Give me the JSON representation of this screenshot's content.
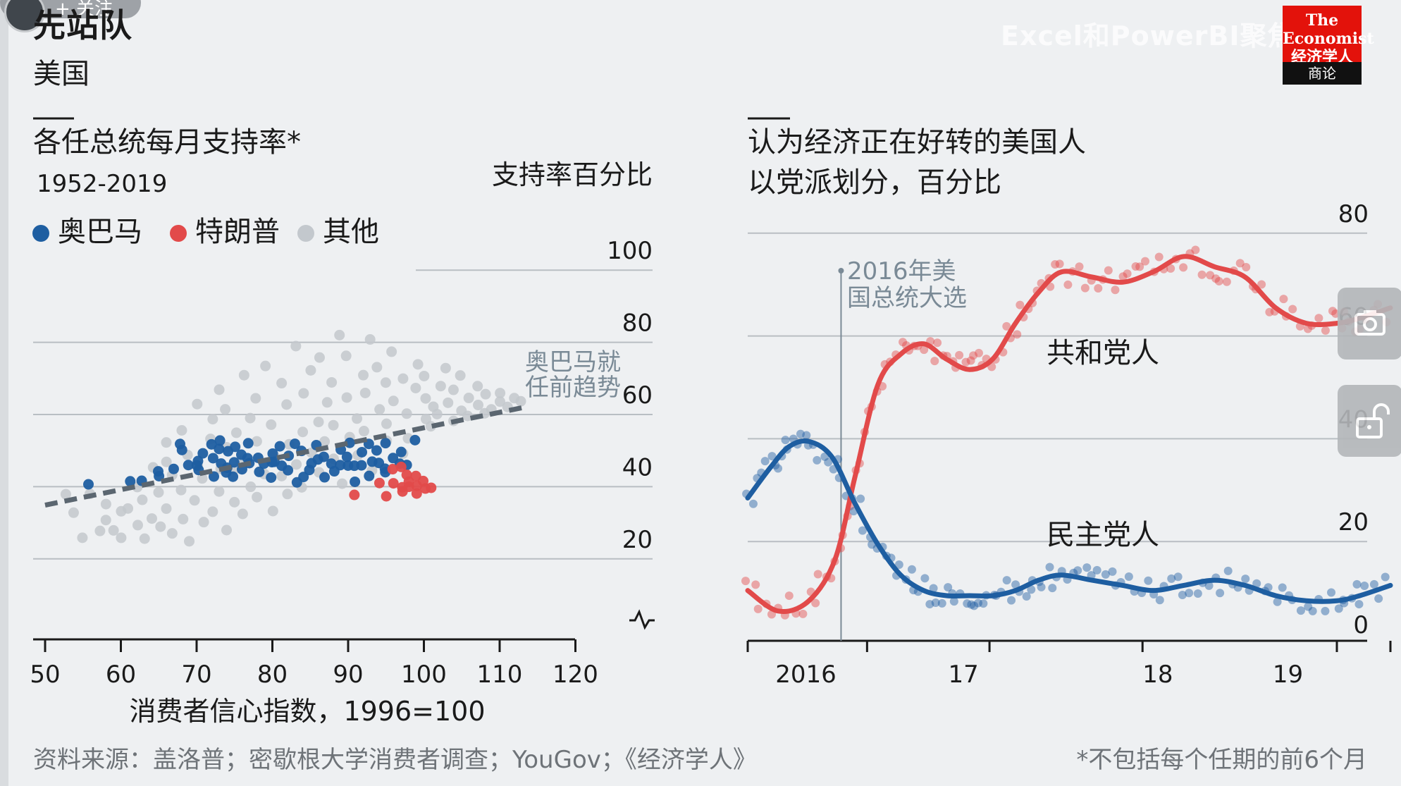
{
  "page": {
    "title": "先站队",
    "subtitle": "美国",
    "watermark": "Excel和PowerBI聚焦",
    "overlay_follow": "+ 关注",
    "logo_top": "The Economist 经济学人",
    "logo_bottom": "商论",
    "source": "资料来源：盖洛普；密歇根大学消费者调查；YouGov；《经济学人》",
    "footnote": "*不包括每个任期的前6个月"
  },
  "icons": {
    "camera": "camera-icon",
    "lock": "unlock-icon"
  },
  "colors": {
    "obama": "#1e5ea1",
    "trump": "#e24a4a",
    "other": "#c3c8cd",
    "trend": "#5b6670"
  },
  "chart_data": [
    {
      "type": "scatter",
      "title": "各任总统每月支持率*",
      "subtitle": "1952-2019",
      "xlabel": "消费者信心指数，1996=100",
      "ylabel": "支持率百分比",
      "xlim": [
        47,
        122
      ],
      "ylim": [
        10,
        100
      ],
      "x_ticks": [
        50,
        60,
        70,
        80,
        90,
        100,
        110,
        120
      ],
      "y_ticks": [
        20,
        40,
        60,
        80,
        100
      ],
      "grid": "horizontal",
      "legend_position": "top-left",
      "annotation": "奥巴马就任前趋势",
      "trendline": {
        "name": "奥巴马就任前趋势",
        "x": [
          50,
          113
        ],
        "y": [
          34.5,
          61.5
        ]
      },
      "series": [
        {
          "name": "奥巴马",
          "color": "#1e5ea1",
          "x": [
            56,
            61,
            63,
            65,
            65,
            67,
            68,
            68,
            69,
            70,
            70,
            70,
            71,
            72,
            72,
            72,
            73,
            73,
            73,
            74,
            74,
            74,
            75,
            75,
            75,
            76,
            76,
            77,
            77,
            77,
            78,
            78,
            79,
            80,
            80,
            80,
            80,
            81,
            81,
            82,
            82,
            83,
            83,
            84,
            84,
            85,
            85,
            86,
            86,
            87,
            87,
            88,
            88,
            89,
            89,
            90,
            90,
            90,
            91,
            91,
            92,
            92,
            93,
            93,
            93,
            94,
            94,
            95,
            95,
            95,
            96,
            97,
            97,
            98,
            99
          ],
          "y": [
            40,
            41,
            41,
            43,
            44,
            45,
            50,
            51,
            46,
            45,
            44,
            47,
            49,
            42,
            47,
            51,
            46,
            50,
            52,
            43,
            49,
            45,
            51,
            46,
            42,
            48,
            45,
            47,
            52,
            46,
            44,
            48,
            46,
            46,
            42,
            49,
            47,
            45,
            51,
            48,
            44,
            41,
            51,
            49,
            42,
            46,
            44,
            47,
            51,
            48,
            42,
            46,
            44,
            50,
            46,
            52,
            45,
            48,
            41,
            46,
            49,
            45,
            47,
            52,
            43,
            50,
            46,
            45,
            52,
            44,
            47,
            49,
            46,
            46,
            53
          ]
        },
        {
          "name": "特朗普",
          "color": "#e24a4a",
          "x": [
            91,
            94,
            95,
            96,
            96,
            97,
            97,
            97,
            98,
            98,
            98,
            99,
            99,
            99,
            100,
            100,
            101
          ],
          "y": [
            37,
            41,
            37,
            40,
            44,
            38,
            40,
            45,
            39,
            41,
            43,
            38,
            40,
            42,
            39,
            41,
            39
          ]
        },
        {
          "name": "其他",
          "color": "#c3c8cd",
          "x": [
            53,
            54,
            55,
            56,
            57,
            58,
            58,
            59,
            60,
            60,
            61,
            62,
            62,
            63,
            63,
            64,
            64,
            65,
            65,
            66,
            66,
            66,
            67,
            67,
            68,
            68,
            68,
            69,
            69,
            70,
            70,
            70,
            71,
            71,
            72,
            72,
            72,
            73,
            73,
            73,
            74,
            74,
            74,
            75,
            75,
            75,
            76,
            76,
            76,
            77,
            77,
            78,
            78,
            78,
            79,
            79,
            80,
            80,
            80,
            81,
            81,
            82,
            82,
            82,
            83,
            83,
            84,
            84,
            84,
            85,
            85,
            86,
            86,
            86,
            87,
            87,
            88,
            88,
            88,
            89,
            89,
            90,
            90,
            90,
            91,
            91,
            92,
            92,
            92,
            93,
            93,
            94,
            94,
            95,
            95,
            95,
            96,
            96,
            97,
            97,
            98,
            98,
            99,
            99,
            100,
            100,
            100,
            101,
            101,
            102,
            102,
            103,
            103,
            104,
            104,
            105,
            105,
            106,
            106,
            107,
            107,
            108,
            108,
            109,
            110,
            110,
            111,
            112,
            113
          ],
          "y": [
            37,
            32,
            25,
            38,
            27,
            30,
            35,
            28,
            33,
            26,
            34,
            29,
            40,
            36,
            25,
            31,
            45,
            38,
            28,
            34,
            47,
            52,
            27,
            43,
            39,
            31,
            55,
            48,
            25,
            46,
            36,
            63,
            42,
            30,
            53,
            58,
            33,
            45,
            67,
            38,
            50,
            28,
            61,
            44,
            35,
            55,
            47,
            70,
            32,
            40,
            59,
            52,
            37,
            64,
            43,
            73,
            48,
            33,
            57,
            42,
            68,
            51,
            37,
            62,
            46,
            79,
            55,
            40,
            66,
            49,
            72,
            58,
            43,
            75,
            52,
            63,
            47,
            69,
            57,
            41,
            82,
            53,
            64,
            76,
            48,
            59,
            70,
            55,
            66,
            80,
            44,
            61,
            73,
            52,
            68,
            57,
            77,
            63,
            49,
            70,
            60,
            53,
            67,
            74,
            58,
            64,
            70,
            62,
            56,
            67,
            60,
            72,
            63,
            58,
            66,
            61,
            70,
            59,
            64,
            62,
            67,
            60,
            65,
            61,
            63,
            66,
            62,
            64,
            63
          ]
        }
      ]
    },
    {
      "type": "line",
      "title": "认为经济正在好转的美国人",
      "subtitle": "以党派划分，百分比",
      "xlim": [
        2015.35,
        2019.55
      ],
      "ylim": [
        0,
        80
      ],
      "y_ticks": [
        0,
        20,
        40,
        60,
        80
      ],
      "x_ticks": [
        2015.35,
        2016.13,
        2016.93,
        2017.93,
        2019.2,
        2019.55
      ],
      "x_tick_labels": [
        {
          "label": "2016",
          "at": 2015.73
        },
        {
          "label": "17",
          "at": 2016.76
        },
        {
          "label": "18",
          "at": 2018.03
        },
        {
          "label": "19",
          "at": 2018.88
        }
      ],
      "grid": "horizontal",
      "annotation": {
        "label": "2016年美国总统大选",
        "x": 2015.96
      },
      "series": [
        {
          "name": "共和党人",
          "color": "#e24a4a",
          "x": [
            2015.35,
            2015.55,
            2015.75,
            2015.92,
            2016.05,
            2016.2,
            2016.35,
            2016.5,
            2016.65,
            2016.8,
            2016.95,
            2017.1,
            2017.25,
            2017.4,
            2017.6,
            2017.8,
            2018.0,
            2018.2,
            2018.4,
            2018.6,
            2018.8,
            2019.0,
            2019.2,
            2019.35,
            2019.55
          ],
          "y": [
            8,
            4,
            6,
            14,
            30,
            48,
            54,
            56,
            53,
            51,
            53,
            60,
            66,
            70,
            69,
            68,
            70,
            73,
            71,
            69,
            63,
            60,
            60,
            61,
            63
          ]
        },
        {
          "name": "民主党人",
          "color": "#1e5ea1",
          "x": [
            2015.35,
            2015.5,
            2015.62,
            2015.75,
            2015.9,
            2016.05,
            2016.2,
            2016.35,
            2016.5,
            2016.65,
            2016.8,
            2016.95,
            2017.1,
            2017.25,
            2017.4,
            2017.6,
            2017.8,
            2018.0,
            2018.2,
            2018.4,
            2018.6,
            2018.8,
            2019.0,
            2019.2,
            2019.35,
            2019.55
          ],
          "y": [
            26,
            32,
            36,
            37,
            34,
            25,
            17,
            11,
            8,
            7,
            7,
            7,
            8,
            10,
            11,
            10,
            9,
            8,
            9,
            10,
            9,
            7,
            6,
            6,
            7,
            9
          ]
        }
      ]
    }
  ]
}
